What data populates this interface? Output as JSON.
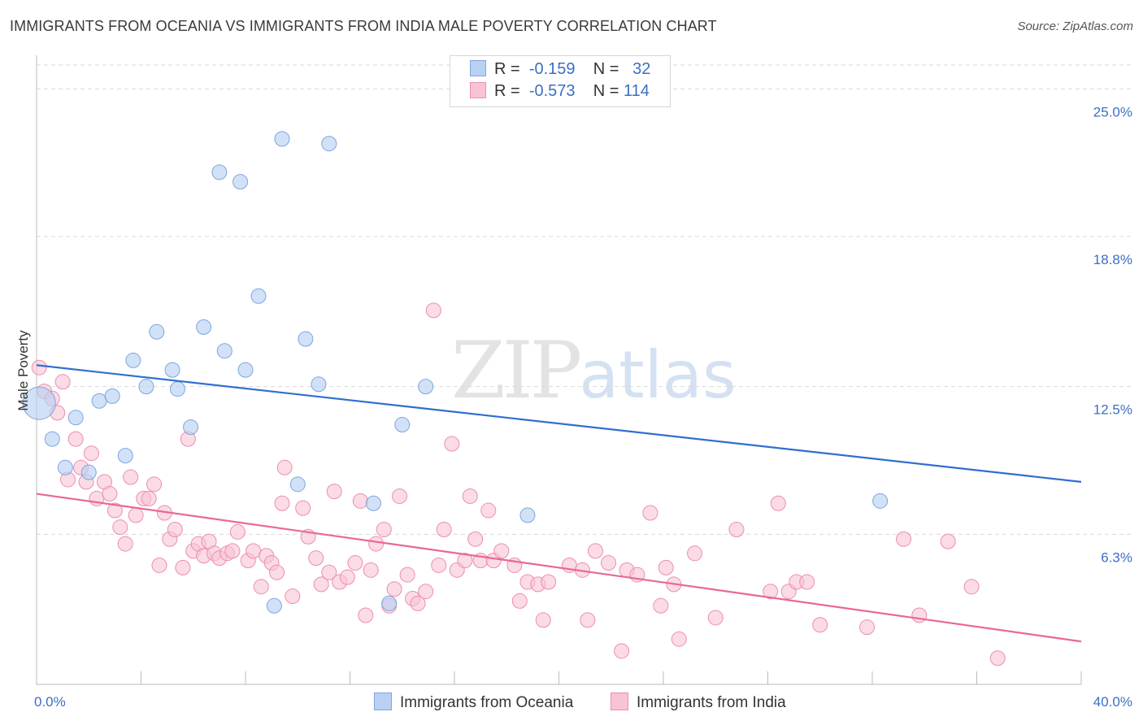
{
  "header": {
    "title": "IMMIGRANTS FROM OCEANIA VS IMMIGRANTS FROM INDIA MALE POVERTY CORRELATION CHART",
    "source": "Source: ZipAtlas.com"
  },
  "watermark": {
    "zip": "ZIP",
    "atlas": "atlas"
  },
  "legend": {
    "rows": [
      {
        "r_label": "R =",
        "r_value": "-0.159",
        "n_label": "N =",
        "n_value": "32"
      },
      {
        "r_label": "R =",
        "r_value": "-0.573",
        "n_label": "N =",
        "n_value": "114"
      }
    ]
  },
  "bottom_legend": {
    "series_a": "Immigrants from Oceania",
    "series_b": "Immigrants from India"
  },
  "colors": {
    "oceania_fill": "#b8d1f3",
    "oceania_stroke": "#7fa6dc",
    "oceania_line": "#2f6fcf",
    "india_fill": "#f8c3d4",
    "india_stroke": "#eb8fae",
    "india_line": "#e8679a",
    "axis_label": "#3b6fc4",
    "grid": "#d9d9d9"
  },
  "chart_data": {
    "type": "scatter",
    "title": "IMMIGRANTS FROM OCEANIA VS IMMIGRANTS FROM INDIA MALE POVERTY CORRELATION CHART",
    "xlabel": "",
    "ylabel": "Male Poverty",
    "xlim": [
      0,
      40
    ],
    "ylim": [
      0,
      26
    ],
    "x_tick_labels": [
      {
        "value": 0,
        "label": "0.0%"
      },
      {
        "value": 40,
        "label": "40.0%"
      }
    ],
    "y_ticks": [
      {
        "value": 6.3,
        "label": "6.3%"
      },
      {
        "value": 12.5,
        "label": "12.5%"
      },
      {
        "value": 18.8,
        "label": "18.8%"
      },
      {
        "value": 25.0,
        "label": "25.0%"
      }
    ],
    "grid": true,
    "legend_position": "top-center",
    "series": [
      {
        "name": "Immigrants from Oceania",
        "R": -0.159,
        "N": 32,
        "trend": {
          "x": [
            0,
            40
          ],
          "y": [
            13.4,
            8.5
          ]
        },
        "points": [
          {
            "x": 0.1,
            "y": 11.8,
            "big": true
          },
          {
            "x": 0.6,
            "y": 10.3
          },
          {
            "x": 1.1,
            "y": 9.1
          },
          {
            "x": 1.5,
            "y": 11.2
          },
          {
            "x": 2.0,
            "y": 8.9
          },
          {
            "x": 2.4,
            "y": 11.9
          },
          {
            "x": 2.9,
            "y": 12.1
          },
          {
            "x": 3.4,
            "y": 9.6
          },
          {
            "x": 3.7,
            "y": 13.6
          },
          {
            "x": 4.2,
            "y": 12.5
          },
          {
            "x": 4.6,
            "y": 14.8
          },
          {
            "x": 5.2,
            "y": 13.2
          },
          {
            "x": 5.4,
            "y": 12.4
          },
          {
            "x": 5.9,
            "y": 10.8
          },
          {
            "x": 6.4,
            "y": 15.0
          },
          {
            "x": 7.0,
            "y": 21.5
          },
          {
            "x": 7.2,
            "y": 14.0
          },
          {
            "x": 7.8,
            "y": 21.1
          },
          {
            "x": 8.0,
            "y": 13.2
          },
          {
            "x": 8.5,
            "y": 16.3
          },
          {
            "x": 9.1,
            "y": 3.3
          },
          {
            "x": 9.4,
            "y": 22.9
          },
          {
            "x": 10.0,
            "y": 8.4
          },
          {
            "x": 10.3,
            "y": 14.5
          },
          {
            "x": 10.8,
            "y": 12.6
          },
          {
            "x": 11.2,
            "y": 22.7
          },
          {
            "x": 12.9,
            "y": 7.6
          },
          {
            "x": 13.5,
            "y": 3.4
          },
          {
            "x": 14.0,
            "y": 10.9
          },
          {
            "x": 14.9,
            "y": 12.5
          },
          {
            "x": 18.8,
            "y": 7.1
          },
          {
            "x": 32.3,
            "y": 7.7
          }
        ]
      },
      {
        "name": "Immigrants from India",
        "R": -0.573,
        "N": 114,
        "trend": {
          "x": [
            0,
            40
          ],
          "y": [
            8.0,
            1.8
          ]
        },
        "points": [
          {
            "x": 0.1,
            "y": 13.3
          },
          {
            "x": 0.3,
            "y": 12.3
          },
          {
            "x": 0.6,
            "y": 12.0
          },
          {
            "x": 0.8,
            "y": 11.4
          },
          {
            "x": 1.0,
            "y": 12.7
          },
          {
            "x": 1.2,
            "y": 8.6
          },
          {
            "x": 1.5,
            "y": 10.3
          },
          {
            "x": 1.7,
            "y": 9.1
          },
          {
            "x": 1.9,
            "y": 8.5
          },
          {
            "x": 2.1,
            "y": 9.7
          },
          {
            "x": 2.3,
            "y": 7.8
          },
          {
            "x": 2.6,
            "y": 8.5
          },
          {
            "x": 2.8,
            "y": 8.0
          },
          {
            "x": 3.0,
            "y": 7.3
          },
          {
            "x": 3.2,
            "y": 6.6
          },
          {
            "x": 3.4,
            "y": 5.9
          },
          {
            "x": 3.6,
            "y": 8.7
          },
          {
            "x": 3.8,
            "y": 7.1
          },
          {
            "x": 4.1,
            "y": 7.8
          },
          {
            "x": 4.3,
            "y": 7.8
          },
          {
            "x": 4.5,
            "y": 8.4
          },
          {
            "x": 4.7,
            "y": 5.0
          },
          {
            "x": 4.9,
            "y": 7.2
          },
          {
            "x": 5.1,
            "y": 6.1
          },
          {
            "x": 5.3,
            "y": 6.5
          },
          {
            "x": 5.6,
            "y": 4.9
          },
          {
            "x": 5.8,
            "y": 10.3
          },
          {
            "x": 6.0,
            "y": 5.6
          },
          {
            "x": 6.2,
            "y": 5.9
          },
          {
            "x": 6.4,
            "y": 5.4
          },
          {
            "x": 6.6,
            "y": 6.0
          },
          {
            "x": 6.8,
            "y": 5.5
          },
          {
            "x": 7.0,
            "y": 5.3
          },
          {
            "x": 7.3,
            "y": 5.5
          },
          {
            "x": 7.5,
            "y": 5.6
          },
          {
            "x": 7.7,
            "y": 6.4
          },
          {
            "x": 8.1,
            "y": 5.2
          },
          {
            "x": 8.3,
            "y": 5.6
          },
          {
            "x": 8.6,
            "y": 4.1
          },
          {
            "x": 8.8,
            "y": 5.4
          },
          {
            "x": 9.0,
            "y": 5.1
          },
          {
            "x": 9.2,
            "y": 4.7
          },
          {
            "x": 9.4,
            "y": 7.6
          },
          {
            "x": 9.5,
            "y": 9.1
          },
          {
            "x": 9.8,
            "y": 3.7
          },
          {
            "x": 10.2,
            "y": 7.4
          },
          {
            "x": 10.4,
            "y": 6.2
          },
          {
            "x": 10.7,
            "y": 5.3
          },
          {
            "x": 10.9,
            "y": 4.2
          },
          {
            "x": 11.2,
            "y": 4.7
          },
          {
            "x": 11.4,
            "y": 8.1
          },
          {
            "x": 11.6,
            "y": 4.3
          },
          {
            "x": 11.9,
            "y": 4.5
          },
          {
            "x": 12.2,
            "y": 5.1
          },
          {
            "x": 12.4,
            "y": 7.7
          },
          {
            "x": 12.6,
            "y": 2.9
          },
          {
            "x": 12.8,
            "y": 4.8
          },
          {
            "x": 13.0,
            "y": 5.9
          },
          {
            "x": 13.3,
            "y": 6.5
          },
          {
            "x": 13.5,
            "y": 3.3
          },
          {
            "x": 13.7,
            "y": 4.0
          },
          {
            "x": 13.9,
            "y": 7.9
          },
          {
            "x": 14.2,
            "y": 4.6
          },
          {
            "x": 14.4,
            "y": 3.6
          },
          {
            "x": 14.6,
            "y": 3.4
          },
          {
            "x": 14.9,
            "y": 3.9
          },
          {
            "x": 15.2,
            "y": 15.7
          },
          {
            "x": 15.4,
            "y": 5.0
          },
          {
            "x": 15.6,
            "y": 6.5
          },
          {
            "x": 15.9,
            "y": 10.1
          },
          {
            "x": 16.1,
            "y": 4.8
          },
          {
            "x": 16.4,
            "y": 5.2
          },
          {
            "x": 16.6,
            "y": 7.9
          },
          {
            "x": 16.8,
            "y": 6.1
          },
          {
            "x": 17.0,
            "y": 5.2
          },
          {
            "x": 17.3,
            "y": 7.3
          },
          {
            "x": 17.5,
            "y": 5.2
          },
          {
            "x": 17.8,
            "y": 5.6
          },
          {
            "x": 18.3,
            "y": 5.0
          },
          {
            "x": 18.5,
            "y": 3.5
          },
          {
            "x": 18.8,
            "y": 4.3
          },
          {
            "x": 19.2,
            "y": 4.2
          },
          {
            "x": 19.4,
            "y": 2.7
          },
          {
            "x": 19.6,
            "y": 4.3
          },
          {
            "x": 20.4,
            "y": 5.0
          },
          {
            "x": 20.9,
            "y": 4.8
          },
          {
            "x": 21.1,
            "y": 2.7
          },
          {
            "x": 21.4,
            "y": 5.6
          },
          {
            "x": 21.9,
            "y": 5.1
          },
          {
            "x": 22.4,
            "y": 1.4
          },
          {
            "x": 22.6,
            "y": 4.8
          },
          {
            "x": 23.0,
            "y": 4.6
          },
          {
            "x": 23.5,
            "y": 7.2
          },
          {
            "x": 23.9,
            "y": 3.3
          },
          {
            "x": 24.1,
            "y": 4.9
          },
          {
            "x": 24.4,
            "y": 4.2
          },
          {
            "x": 24.6,
            "y": 1.9
          },
          {
            "x": 25.2,
            "y": 5.5
          },
          {
            "x": 26.0,
            "y": 2.8
          },
          {
            "x": 26.8,
            "y": 6.5
          },
          {
            "x": 28.1,
            "y": 3.9
          },
          {
            "x": 28.4,
            "y": 7.6
          },
          {
            "x": 28.8,
            "y": 3.9
          },
          {
            "x": 29.1,
            "y": 4.3
          },
          {
            "x": 29.5,
            "y": 4.3
          },
          {
            "x": 30.0,
            "y": 2.5
          },
          {
            "x": 31.8,
            "y": 2.4
          },
          {
            "x": 33.2,
            "y": 6.1
          },
          {
            "x": 33.8,
            "y": 2.9
          },
          {
            "x": 34.9,
            "y": 6.0
          },
          {
            "x": 35.8,
            "y": 4.1
          },
          {
            "x": 36.8,
            "y": 1.1
          }
        ]
      }
    ]
  }
}
